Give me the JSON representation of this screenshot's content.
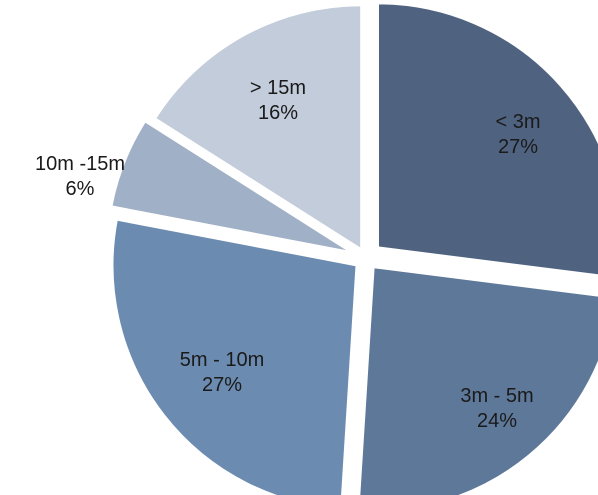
{
  "chart_data": {
    "type": "pie",
    "title": "",
    "slices": [
      {
        "label": "< 3m",
        "value": 27,
        "value_label": "27%",
        "color": "#4f6380"
      },
      {
        "label": "3m - 5m",
        "value": 24,
        "value_label": "24%",
        "color": "#5e7899"
      },
      {
        "label": "5m - 10m",
        "value": 27,
        "value_label": "27%",
        "color": "#6c8bb0"
      },
      {
        "label": "10m -15m",
        "value": 6,
        "value_label": "6%",
        "color": "#a0b0c6"
      },
      {
        "label": "> 15m",
        "value": 16,
        "value_label": "16%",
        "color": "#c2ccda"
      }
    ],
    "legend": "none",
    "exploded": true
  }
}
